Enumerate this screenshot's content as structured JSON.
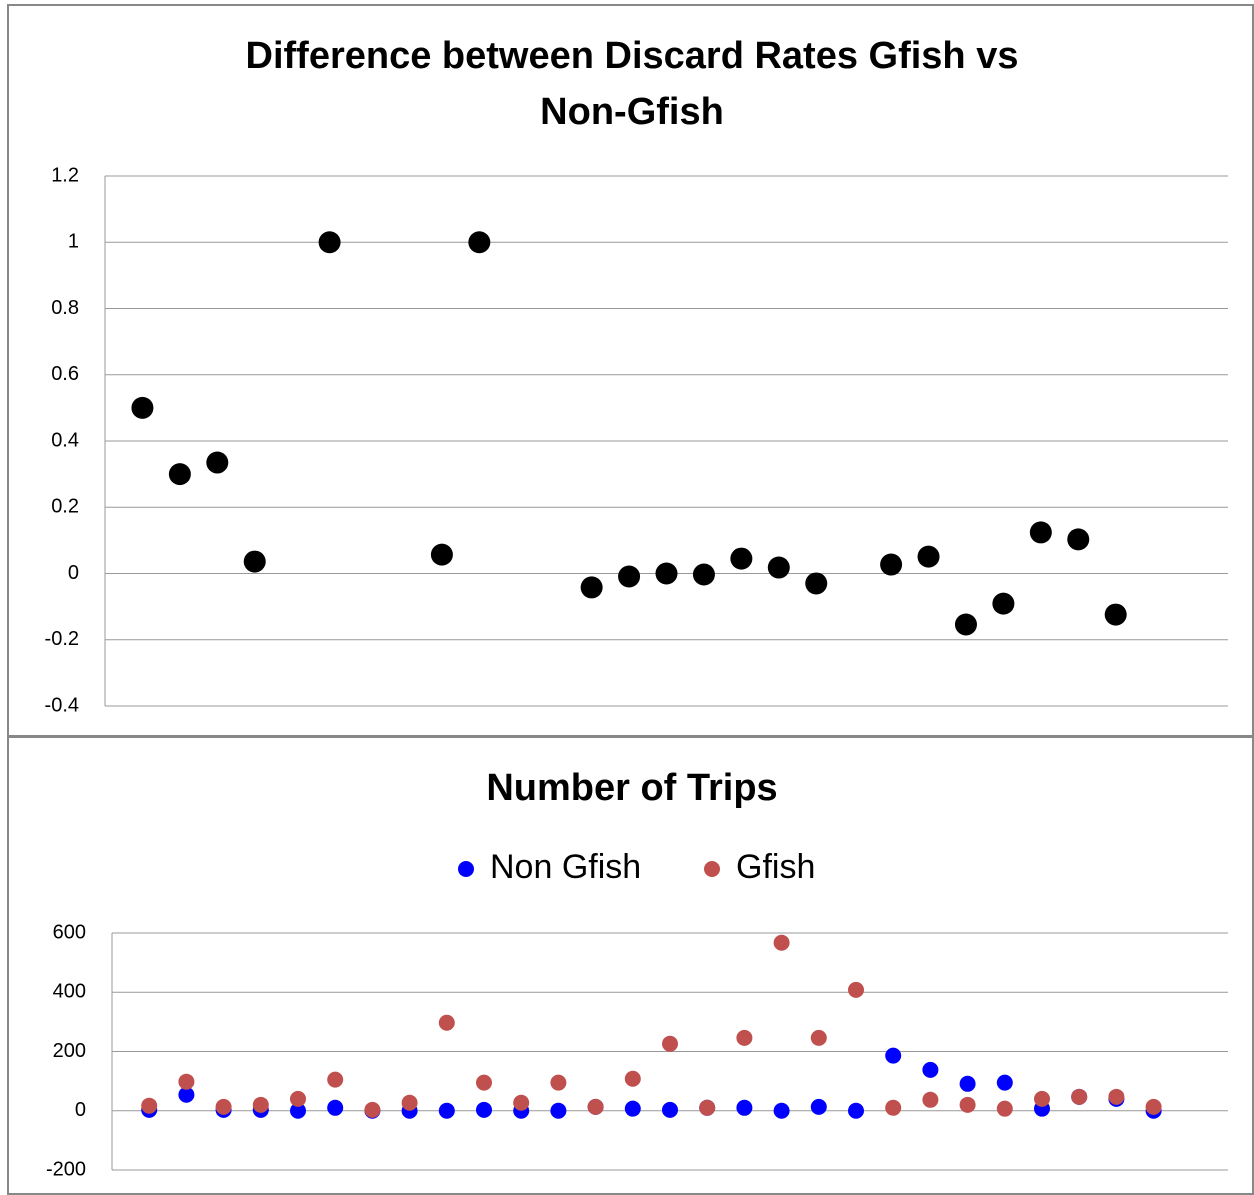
{
  "chart_data": [
    {
      "type": "scatter",
      "title": "Difference between Discard Rates Gfish vs Non-Gfish",
      "x": [
        1,
        2,
        3,
        4,
        6,
        9,
        10,
        13,
        14,
        15,
        16,
        17,
        18,
        19,
        21,
        22,
        23,
        24,
        25,
        26,
        27
      ],
      "values": [
        0.5,
        0.3,
        0.335,
        0.036,
        1,
        0.057,
        1,
        -0.042,
        -0.009,
        0,
        -0.003,
        0.045,
        0.018,
        -0.03,
        0.027,
        0.051,
        -0.154,
        -0.091,
        0.124,
        0.103,
        -0.124
      ],
      "color": "#000000",
      "xlim": [
        0,
        30
      ],
      "ylim": [
        -0.4,
        1.2
      ],
      "yticks": [
        -0.4,
        -0.2,
        0,
        0.2,
        0.4,
        0.6,
        0.8,
        1,
        1.2
      ],
      "grid": true
    },
    {
      "type": "scatter",
      "title": "Number of Trips",
      "x": [
        1,
        2,
        3,
        4,
        5,
        6,
        7,
        8,
        9,
        10,
        11,
        12,
        13,
        14,
        15,
        16,
        17,
        18,
        19,
        20,
        21,
        22,
        23,
        24,
        25,
        26,
        27,
        28
      ],
      "series": [
        {
          "name": "Non Gfish",
          "color": "#0000ff",
          "values": [
            3,
            54,
            3,
            3,
            0,
            10,
            0,
            0,
            0,
            3,
            0,
            0,
            13,
            7,
            3,
            10,
            10,
            0,
            13,
            0,
            186,
            138,
            91,
            95,
            7,
            47,
            40,
            0
          ]
        },
        {
          "name": "Gfish",
          "color": "#c0504d",
          "values": [
            17,
            98,
            13,
            20,
            40,
            105,
            3,
            27,
            297,
            95,
            27,
            95,
            13,
            108,
            226,
            10,
            246,
            567,
            246,
            408,
            10,
            37,
            20,
            7,
            40,
            47,
            47,
            13
          ]
        }
      ],
      "xlim": [
        0,
        30
      ],
      "ylim": [
        -200,
        600
      ],
      "yticks": [
        -200,
        0,
        200,
        400,
        600
      ],
      "grid": true,
      "legend": "top"
    }
  ]
}
